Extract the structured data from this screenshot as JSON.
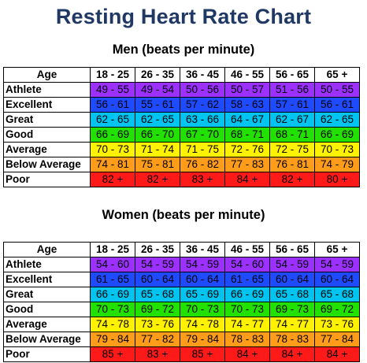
{
  "title": "Resting Heart Rate Chart",
  "men": {
    "subtitle": "Men (beats per minute)",
    "age_header": "Age",
    "age_groups": [
      "18 - 25",
      "26 - 35",
      "36 - 45",
      "46 - 55",
      "56 - 65",
      "65 +"
    ],
    "rows": [
      {
        "label": "Athlete",
        "values": [
          "49 - 55",
          "49 - 54",
          "50 - 56",
          "50 - 57",
          "51 - 56",
          "50 - 55"
        ]
      },
      {
        "label": "Excellent",
        "values": [
          "56 - 61",
          "55 - 61",
          "57 - 62",
          "58 - 63",
          "57 - 61",
          "56 - 61"
        ]
      },
      {
        "label": "Great",
        "values": [
          "62 - 65",
          "62 - 65",
          "63 - 66",
          "64 - 67",
          "62 - 67",
          "62 - 65"
        ]
      },
      {
        "label": "Good",
        "values": [
          "66 - 69",
          "66 - 70",
          "67 - 70",
          "68 - 71",
          "68 - 71",
          "66 - 69"
        ]
      },
      {
        "label": "Average",
        "values": [
          "70 - 73",
          "71 - 74",
          "71 - 75",
          "72 - 76",
          "72 - 75",
          "70 - 73"
        ]
      },
      {
        "label": "Below Average",
        "values": [
          "74 - 81",
          "75 - 81",
          "76 - 82",
          "77 - 83",
          "76 - 81",
          "74 - 79"
        ]
      },
      {
        "label": "Poor",
        "values": [
          "82 +",
          "82 +",
          "83 +",
          "84 +",
          "82 +",
          "80 +"
        ]
      }
    ]
  },
  "women": {
    "subtitle": "Women (beats per minute)",
    "age_header": "Age",
    "age_groups": [
      "18 - 25",
      "26 - 35",
      "36 - 45",
      "46 - 55",
      "56 - 65",
      "65 +"
    ],
    "rows": [
      {
        "label": "Athlete",
        "values": [
          "54 - 60",
          "54 - 59",
          "54 - 59",
          "54 - 60",
          "54 - 59",
          "54 - 59"
        ]
      },
      {
        "label": "Excellent",
        "values": [
          "61 - 65",
          "60 - 64",
          "60 - 64",
          "61 - 65",
          "60 - 64",
          "60 - 64"
        ]
      },
      {
        "label": "Great",
        "values": [
          "66 - 69",
          "65 - 68",
          "65 - 69",
          "66 - 69",
          "65 - 68",
          "65 - 68"
        ]
      },
      {
        "label": "Good",
        "values": [
          "70 - 73",
          "69 - 72",
          "70 - 73",
          "70 - 73",
          "69 - 73",
          "69 - 72"
        ]
      },
      {
        "label": "Average",
        "values": [
          "74 - 78",
          "73 - 76",
          "74 - 78",
          "74 - 77",
          "74 - 77",
          "73 - 76"
        ]
      },
      {
        "label": "Below Average",
        "values": [
          "79 - 84",
          "77 - 82",
          "79 - 84",
          "78 - 83",
          "78 - 83",
          "77 - 84"
        ]
      },
      {
        "label": "Poor",
        "values": [
          "85 +",
          "83 +",
          "85 +",
          "84 +",
          "84 +",
          "84 +"
        ]
      }
    ]
  },
  "colors": {
    "title": "#1f3864",
    "Athlete": "#9b30ff",
    "Excellent": "#1e4bff",
    "Great": "#00c4f0",
    "Good": "#22e000",
    "Average": "#fff200",
    "Below Average": "#ff9c1a",
    "Poor": "#ff1a1a"
  },
  "chart_data": [
    {
      "type": "table",
      "title": "Men (beats per minute)",
      "columns": [
        "Age",
        "18 - 25",
        "26 - 35",
        "36 - 45",
        "46 - 55",
        "56 - 65",
        "65 +"
      ],
      "rows": [
        [
          "Athlete",
          "49 - 55",
          "49 - 54",
          "50 - 56",
          "50 - 57",
          "51 - 56",
          "50 - 55"
        ],
        [
          "Excellent",
          "56 - 61",
          "55 - 61",
          "57 - 62",
          "58 - 63",
          "57 - 61",
          "56 - 61"
        ],
        [
          "Great",
          "62 - 65",
          "62 - 65",
          "63 - 66",
          "64 - 67",
          "62 - 67",
          "62 - 65"
        ],
        [
          "Good",
          "66 - 69",
          "66 - 70",
          "67 - 70",
          "68 - 71",
          "68 - 71",
          "66 - 69"
        ],
        [
          "Average",
          "70 - 73",
          "71 - 74",
          "71 - 75",
          "72 - 76",
          "72 - 75",
          "70 - 73"
        ],
        [
          "Below Average",
          "74 - 81",
          "75 - 81",
          "76 - 82",
          "77 - 83",
          "76 - 81",
          "74 - 79"
        ],
        [
          "Poor",
          "82 +",
          "82 +",
          "83 +",
          "84 +",
          "82 +",
          "80 +"
        ]
      ]
    },
    {
      "type": "table",
      "title": "Women (beats per minute)",
      "columns": [
        "Age",
        "18 - 25",
        "26 - 35",
        "36 - 45",
        "46 - 55",
        "56 - 65",
        "65 +"
      ],
      "rows": [
        [
          "Athlete",
          "54 - 60",
          "54 - 59",
          "54 - 59",
          "54 - 60",
          "54 - 59",
          "54 - 59"
        ],
        [
          "Excellent",
          "61 - 65",
          "60 - 64",
          "60 - 64",
          "61 - 65",
          "60 - 64",
          "60 - 64"
        ],
        [
          "Great",
          "66 - 69",
          "65 - 68",
          "65 - 69",
          "66 - 69",
          "65 - 68",
          "65 - 68"
        ],
        [
          "Good",
          "70 - 73",
          "69 - 72",
          "70 - 73",
          "70 - 73",
          "69 - 73",
          "69 - 72"
        ],
        [
          "Average",
          "74 - 78",
          "73 - 76",
          "74 - 78",
          "74 - 77",
          "74 - 77",
          "73 - 76"
        ],
        [
          "Below Average",
          "79 - 84",
          "77 - 82",
          "79 - 84",
          "78 - 83",
          "78 - 83",
          "77 - 84"
        ],
        [
          "Poor",
          "85 +",
          "83 +",
          "85 +",
          "84 +",
          "84 +",
          "84 +"
        ]
      ]
    }
  ]
}
